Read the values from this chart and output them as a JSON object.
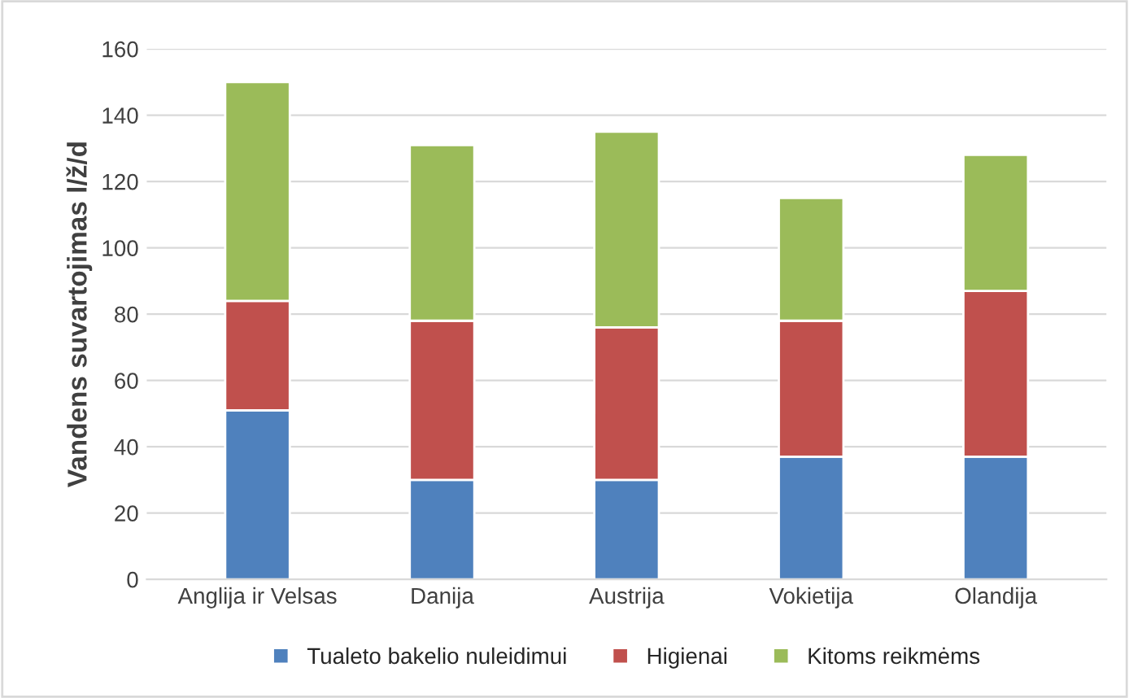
{
  "chart_data": {
    "type": "bar",
    "stacked": true,
    "ylabel": "Vandens suvartojimas l/ž/d",
    "categories": [
      "Anglija ir Velsas",
      "Danija",
      "Austrija",
      "Vokietija",
      "Olandija"
    ],
    "series": [
      {
        "name": "Tualeto bakelio nuleidimui",
        "color": "#4f81bd",
        "values": [
          51,
          30,
          30,
          37,
          37
        ]
      },
      {
        "name": "Higienai",
        "color": "#c0504d",
        "values": [
          33,
          48,
          46,
          41,
          50
        ]
      },
      {
        "name": "Kitoms reikmėms",
        "color": "#9bbb59",
        "values": [
          66,
          53,
          59,
          37,
          41
        ]
      }
    ],
    "ylim": [
      0,
      160
    ],
    "yticks": [
      0,
      20,
      40,
      60,
      80,
      100,
      120,
      140,
      160
    ],
    "grid": "y",
    "legend": "bottom"
  }
}
